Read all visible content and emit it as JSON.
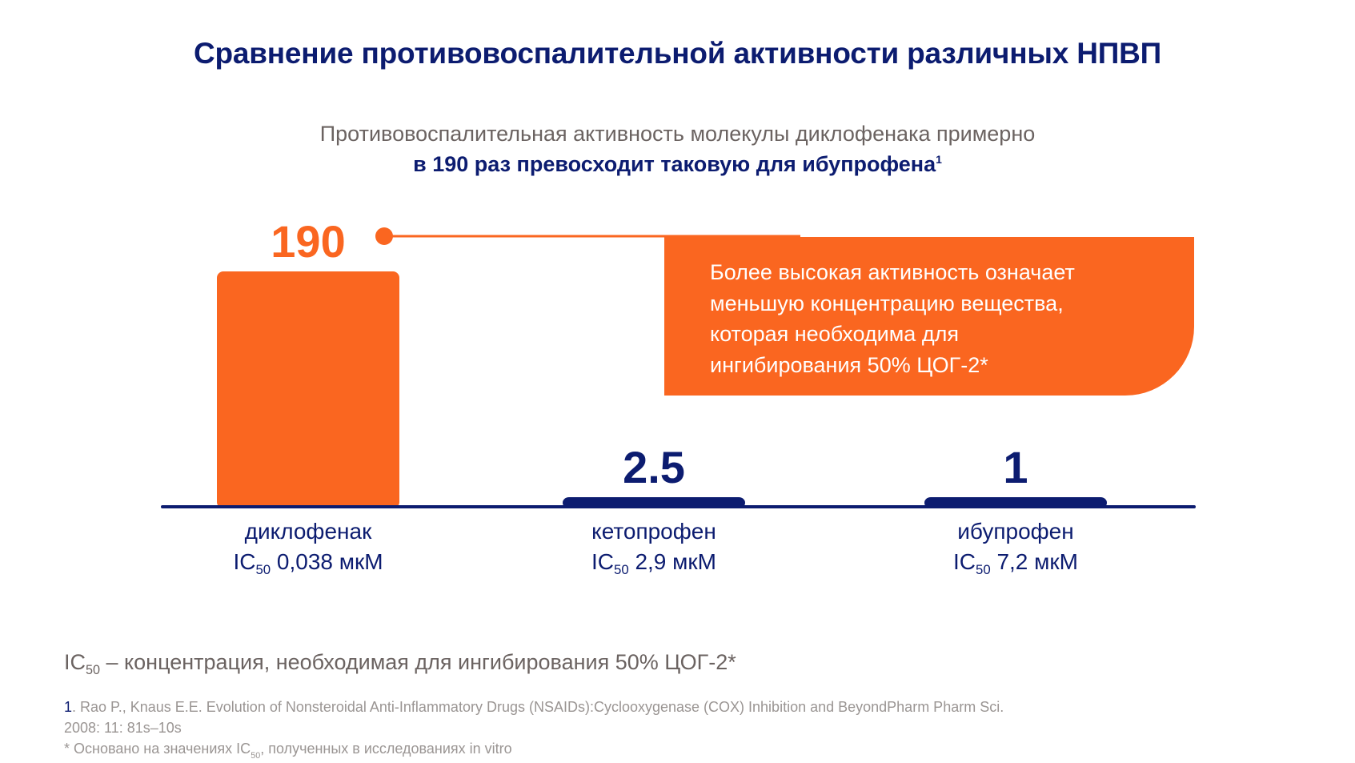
{
  "title": "Сравнение противовоспалительной активности различных НПВП",
  "subtitle": {
    "line1": "Противовоспалительная активность молекулы диклофенака примерно",
    "line2": "в 190 раз превосходит таковую для ибупрофена",
    "line2_sup": "1"
  },
  "callout": {
    "lines": [
      "Более высокая активность означает",
      "меньшую концентрацию вещества,",
      "которая необходима для",
      "ингибирования 50% ЦОГ-2*"
    ]
  },
  "bars": [
    {
      "name": "диклофенак",
      "ic_prefix": "IC",
      "ic_sub": "50",
      "ic_value": " 0,038 мкМ"
    },
    {
      "name": "кетопрофен",
      "ic_prefix": "IC",
      "ic_sub": "50",
      "ic_value": " 2,9 мкМ"
    },
    {
      "name": "ибупрофен",
      "ic_prefix": "IC",
      "ic_sub": "50",
      "ic_value": " 7,2 мкМ"
    }
  ],
  "note": {
    "prefix": "IC",
    "sub": "50",
    "text": " – концентрация, необходимая для ингибирования 50% ЦОГ-2*"
  },
  "footnotes": {
    "ref_number": "1",
    "ref_text": ". Rao P., Knaus E.E. Evolution of Nonsteroidal Anti-Inflammatory Drugs (NSAIDs):Cyclooxygenase (COX) Inhibition and BeyondPharm Pharm Sci.",
    "ref_text2": "2008: 11: 81s–10s",
    "asterisk_prefix": "* Основано на значениях IC",
    "asterisk_sub": "50",
    "asterisk_text": ", полученных в исследованиях in vitro"
  },
  "colors": {
    "orange": "#fa6620",
    "navy": "#0c1c70",
    "gray_text": "#6b6361",
    "light_gray_text": "#9a9593"
  },
  "chart_data": {
    "type": "bar",
    "categories": [
      "диклофенак",
      "кетопрофен",
      "ибупрофен"
    ],
    "values": [
      190,
      2.5,
      1
    ],
    "value_labels": [
      "190",
      "2.5",
      "1"
    ],
    "bar_colors": [
      "#fa6620",
      "#0c1c70",
      "#0c1c70"
    ],
    "scale": "non-linear (schematic)",
    "xlabel": "",
    "ylabel": ""
  }
}
